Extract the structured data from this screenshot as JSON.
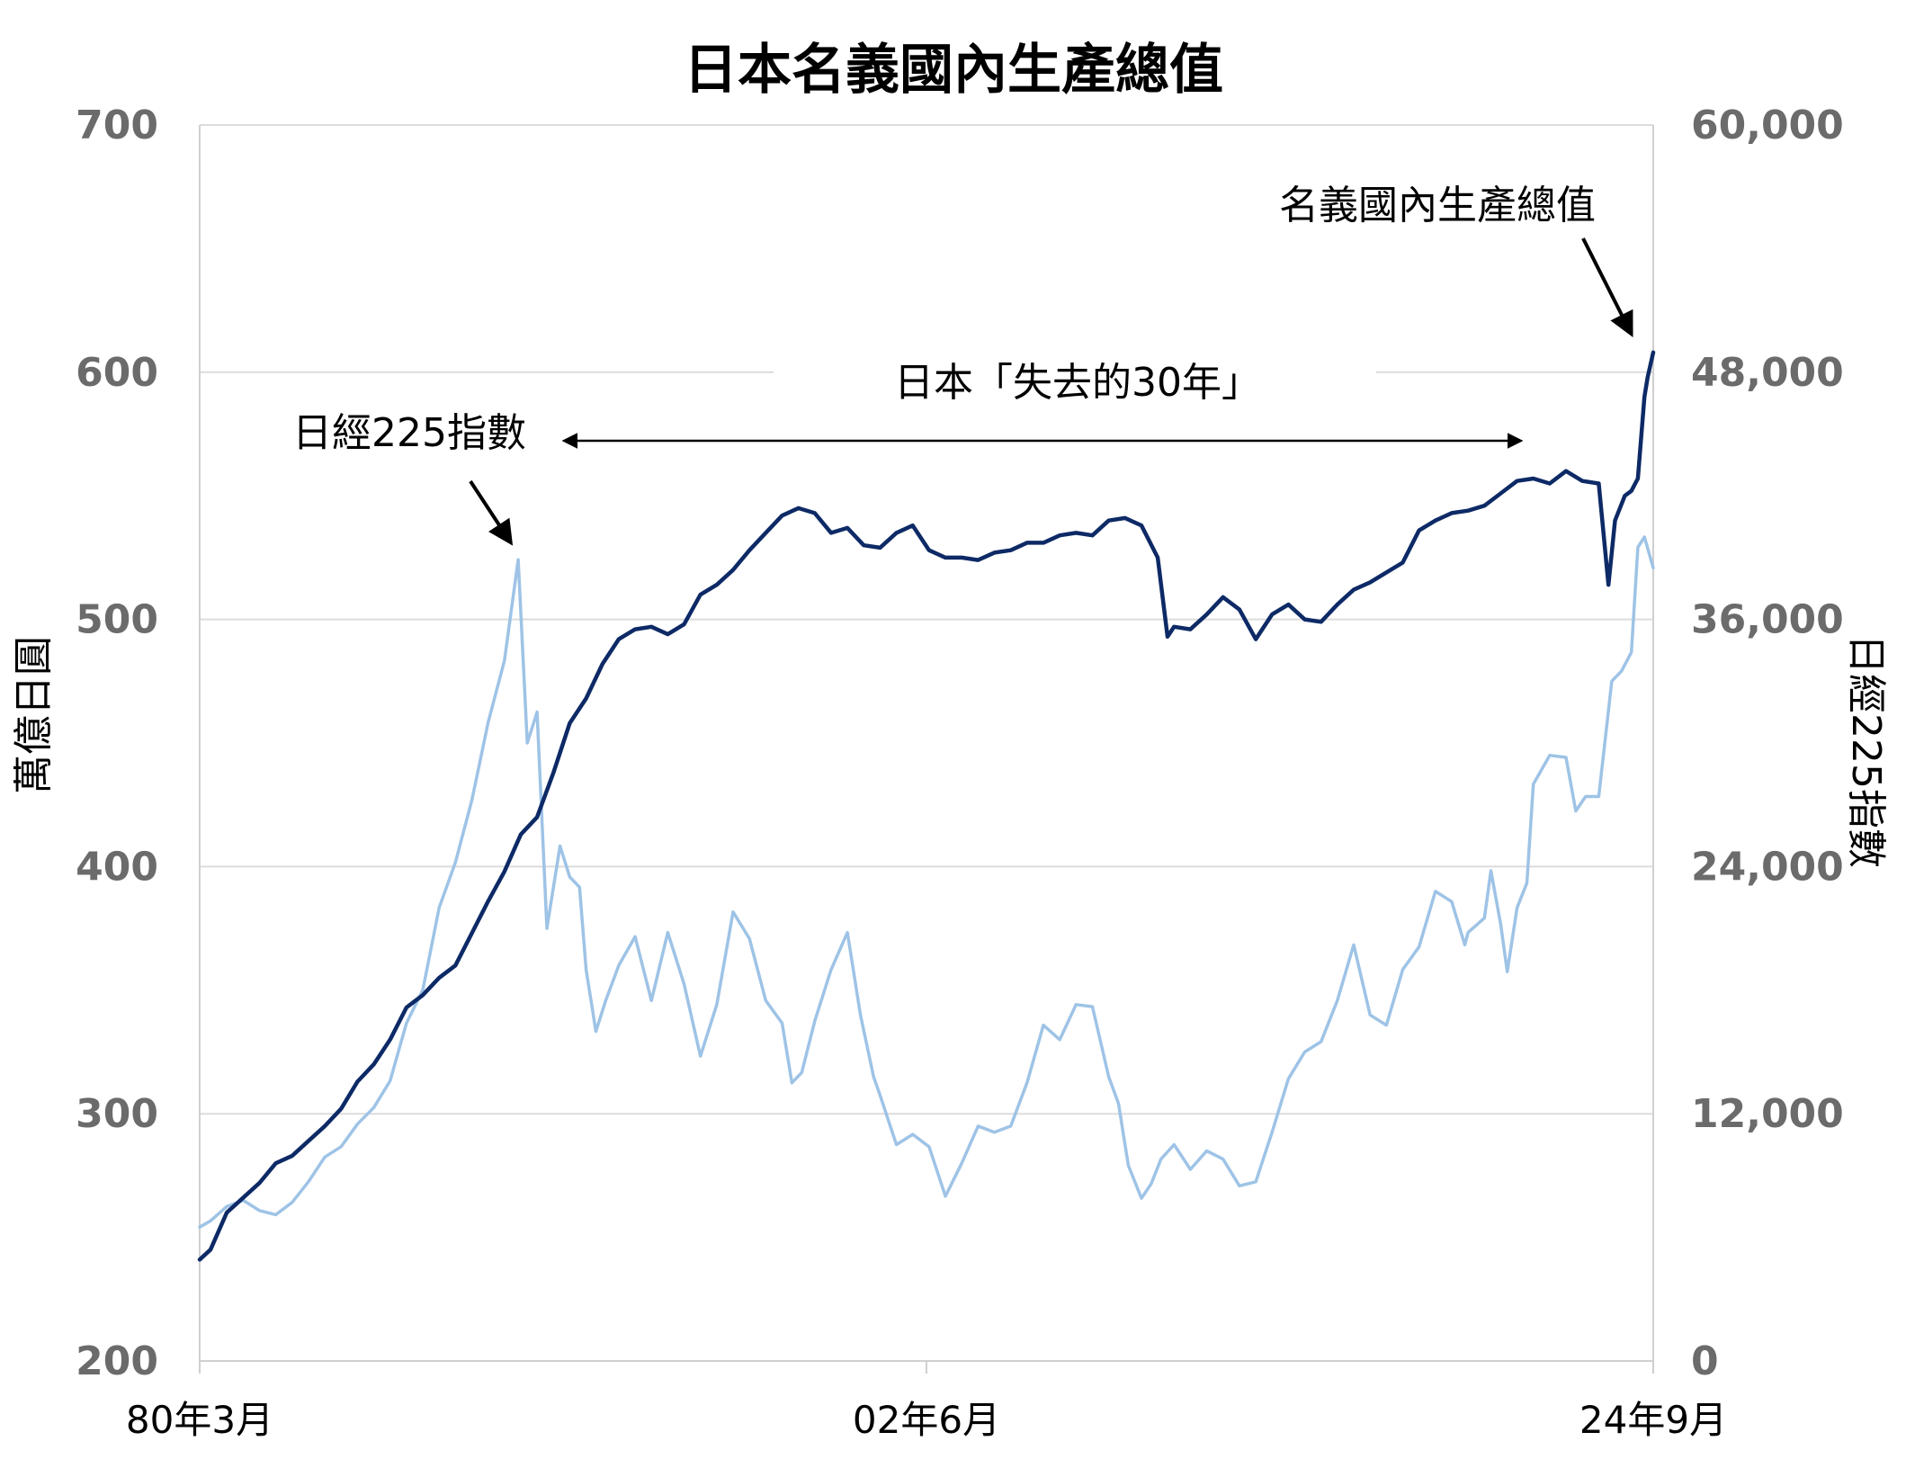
{
  "chart_data": {
    "type": "line",
    "title": "日本名義國內生產總值",
    "ylabel": "萬億日圓",
    "y2label": "日經225指數",
    "ylim": [
      200,
      700
    ],
    "y2lim": [
      0,
      60000
    ],
    "yticks": [
      {
        "v": 200,
        "label": "200"
      },
      {
        "v": 300,
        "label": "300"
      },
      {
        "v": 400,
        "label": "400"
      },
      {
        "v": 500,
        "label": "500"
      },
      {
        "v": 600,
        "label": "600"
      },
      {
        "v": 700,
        "label": "700"
      }
    ],
    "y2ticks": [
      {
        "v": 0,
        "label": "0"
      },
      {
        "v": 12000,
        "label": "12,000"
      },
      {
        "v": 24000,
        "label": "24,000"
      },
      {
        "v": 36000,
        "label": "36,000"
      },
      {
        "v": 48000,
        "label": "48,000"
      },
      {
        "v": 60000,
        "label": "60,000"
      }
    ],
    "xlim": [
      1980.17,
      2024.67
    ],
    "xticks": [
      {
        "v": 1980.17,
        "label": "80年3月"
      },
      {
        "v": 2002.42,
        "label": "02年6月"
      },
      {
        "v": 2024.67,
        "label": "24年9月"
      }
    ],
    "grid": true,
    "legend": "none",
    "series": [
      {
        "name": "名義國內生產總值",
        "axis": "left",
        "color": "#0d2a66",
        "points": [
          [
            1980.17,
            241
          ],
          [
            1980.5,
            245
          ],
          [
            1981.0,
            260
          ],
          [
            1981.5,
            266
          ],
          [
            1982.0,
            272
          ],
          [
            1982.5,
            280
          ],
          [
            1983.0,
            283
          ],
          [
            1983.5,
            289
          ],
          [
            1984.0,
            295
          ],
          [
            1984.5,
            302
          ],
          [
            1985.0,
            313
          ],
          [
            1985.5,
            320
          ],
          [
            1986.0,
            330
          ],
          [
            1986.5,
            343
          ],
          [
            1987.0,
            348
          ],
          [
            1987.5,
            355
          ],
          [
            1988.0,
            360
          ],
          [
            1988.5,
            373
          ],
          [
            1989.0,
            386
          ],
          [
            1989.5,
            398
          ],
          [
            1990.0,
            413
          ],
          [
            1990.5,
            420
          ],
          [
            1991.0,
            438
          ],
          [
            1991.5,
            458
          ],
          [
            1992.0,
            468
          ],
          [
            1992.5,
            482
          ],
          [
            1993.0,
            492
          ],
          [
            1993.5,
            496
          ],
          [
            1994.0,
            497
          ],
          [
            1994.5,
            494
          ],
          [
            1995.0,
            498
          ],
          [
            1995.5,
            510
          ],
          [
            1996.0,
            514
          ],
          [
            1996.5,
            520
          ],
          [
            1997.0,
            528
          ],
          [
            1997.5,
            535
          ],
          [
            1998.0,
            542
          ],
          [
            1998.5,
            545
          ],
          [
            1999.0,
            543
          ],
          [
            1999.5,
            535
          ],
          [
            2000.0,
            537
          ],
          [
            2000.5,
            530
          ],
          [
            2001.0,
            529
          ],
          [
            2001.5,
            535
          ],
          [
            2002.0,
            538
          ],
          [
            2002.5,
            528
          ],
          [
            2003.0,
            525
          ],
          [
            2003.5,
            525
          ],
          [
            2004.0,
            524
          ],
          [
            2004.5,
            527
          ],
          [
            2005.0,
            528
          ],
          [
            2005.5,
            531
          ],
          [
            2006.0,
            531
          ],
          [
            2006.5,
            534
          ],
          [
            2007.0,
            535
          ],
          [
            2007.5,
            534
          ],
          [
            2008.0,
            540
          ],
          [
            2008.5,
            541
          ],
          [
            2009.0,
            538
          ],
          [
            2009.5,
            525
          ],
          [
            2009.8,
            493
          ],
          [
            2010.0,
            497
          ],
          [
            2010.5,
            496
          ],
          [
            2011.0,
            502
          ],
          [
            2011.5,
            509
          ],
          [
            2012.0,
            504
          ],
          [
            2012.5,
            492
          ],
          [
            2013.0,
            502
          ],
          [
            2013.5,
            506
          ],
          [
            2014.0,
            500
          ],
          [
            2014.5,
            499
          ],
          [
            2015.0,
            506
          ],
          [
            2015.5,
            512
          ],
          [
            2016.0,
            515
          ],
          [
            2016.5,
            519
          ],
          [
            2017.0,
            523
          ],
          [
            2017.5,
            536
          ],
          [
            2018.0,
            540
          ],
          [
            2018.5,
            543
          ],
          [
            2019.0,
            544
          ],
          [
            2019.5,
            546
          ],
          [
            2020.0,
            551
          ],
          [
            2020.5,
            556
          ],
          [
            2021.0,
            557
          ],
          [
            2021.5,
            555
          ],
          [
            2022.0,
            560
          ],
          [
            2022.5,
            556
          ],
          [
            2023.0,
            555
          ],
          [
            2023.3,
            514
          ],
          [
            2023.5,
            540
          ],
          [
            2023.8,
            550
          ],
          [
            2024.0,
            552
          ],
          [
            2024.2,
            557
          ],
          [
            2024.4,
            590
          ],
          [
            2024.5,
            598
          ],
          [
            2024.67,
            608
          ]
        ]
      },
      {
        "name": "日經225指數",
        "axis": "right",
        "color": "#9ec3e6",
        "points": [
          [
            1980.17,
            6500
          ],
          [
            1980.5,
            6800
          ],
          [
            1981.0,
            7500
          ],
          [
            1981.5,
            7800
          ],
          [
            1982.0,
            7300
          ],
          [
            1982.5,
            7100
          ],
          [
            1983.0,
            7700
          ],
          [
            1983.5,
            8700
          ],
          [
            1984.0,
            9900
          ],
          [
            1984.5,
            10400
          ],
          [
            1985.0,
            11500
          ],
          [
            1985.5,
            12300
          ],
          [
            1986.0,
            13600
          ],
          [
            1986.5,
            16400
          ],
          [
            1987.0,
            18000
          ],
          [
            1987.5,
            22000
          ],
          [
            1988.0,
            24200
          ],
          [
            1988.5,
            27200
          ],
          [
            1989.0,
            31000
          ],
          [
            1989.5,
            34000
          ],
          [
            1989.92,
            38900
          ],
          [
            1990.2,
            30000
          ],
          [
            1990.5,
            31500
          ],
          [
            1990.8,
            21000
          ],
          [
            1991.2,
            25000
          ],
          [
            1991.5,
            23500
          ],
          [
            1991.8,
            23000
          ],
          [
            1992.0,
            19000
          ],
          [
            1992.3,
            16000
          ],
          [
            1992.6,
            17500
          ],
          [
            1993.0,
            19200
          ],
          [
            1993.5,
            20600
          ],
          [
            1994.0,
            17500
          ],
          [
            1994.5,
            20800
          ],
          [
            1995.0,
            18300
          ],
          [
            1995.5,
            14800
          ],
          [
            1996.0,
            17300
          ],
          [
            1996.5,
            21800
          ],
          [
            1997.0,
            20500
          ],
          [
            1997.5,
            17500
          ],
          [
            1998.0,
            16400
          ],
          [
            1998.3,
            13500
          ],
          [
            1998.6,
            14000
          ],
          [
            1999.0,
            16500
          ],
          [
            1999.5,
            19000
          ],
          [
            2000.0,
            20800
          ],
          [
            2000.4,
            16800
          ],
          [
            2000.8,
            13800
          ],
          [
            2001.0,
            12900
          ],
          [
            2001.5,
            10500
          ],
          [
            2002.0,
            11000
          ],
          [
            2002.5,
            10400
          ],
          [
            2003.0,
            8000
          ],
          [
            2003.5,
            9600
          ],
          [
            2004.0,
            11400
          ],
          [
            2004.5,
            11100
          ],
          [
            2005.0,
            11400
          ],
          [
            2005.5,
            13500
          ],
          [
            2006.0,
            16300
          ],
          [
            2006.5,
            15600
          ],
          [
            2007.0,
            17300
          ],
          [
            2007.5,
            17200
          ],
          [
            2008.0,
            13800
          ],
          [
            2008.3,
            12500
          ],
          [
            2008.6,
            9500
          ],
          [
            2009.0,
            7900
          ],
          [
            2009.3,
            8600
          ],
          [
            2009.6,
            9800
          ],
          [
            2010.0,
            10500
          ],
          [
            2010.5,
            9300
          ],
          [
            2011.0,
            10200
          ],
          [
            2011.5,
            9800
          ],
          [
            2012.0,
            8500
          ],
          [
            2012.5,
            8700
          ],
          [
            2013.0,
            11100
          ],
          [
            2013.5,
            13700
          ],
          [
            2014.0,
            15000
          ],
          [
            2014.5,
            15500
          ],
          [
            2015.0,
            17500
          ],
          [
            2015.5,
            20200
          ],
          [
            2016.0,
            16800
          ],
          [
            2016.5,
            16300
          ],
          [
            2017.0,
            19000
          ],
          [
            2017.5,
            20100
          ],
          [
            2018.0,
            22800
          ],
          [
            2018.5,
            22300
          ],
          [
            2018.9,
            20200
          ],
          [
            2019.0,
            20800
          ],
          [
            2019.5,
            21500
          ],
          [
            2019.7,
            23800
          ],
          [
            2020.0,
            21200
          ],
          [
            2020.2,
            18900
          ],
          [
            2020.5,
            22000
          ],
          [
            2020.8,
            23200
          ],
          [
            2021.0,
            28000
          ],
          [
            2021.5,
            29400
          ],
          [
            2022.0,
            29300
          ],
          [
            2022.3,
            26700
          ],
          [
            2022.6,
            27400
          ],
          [
            2023.0,
            27400
          ],
          [
            2023.4,
            33000
          ],
          [
            2023.7,
            33500
          ],
          [
            2024.0,
            34400
          ],
          [
            2024.2,
            39500
          ],
          [
            2024.4,
            40000
          ],
          [
            2024.67,
            38500
          ]
        ]
      }
    ]
  },
  "annotations": {
    "gdp_label": "名義國內生產總值",
    "nikkei_label": "日經225指數",
    "lost_decades_label": "日本「失去的30年」"
  }
}
